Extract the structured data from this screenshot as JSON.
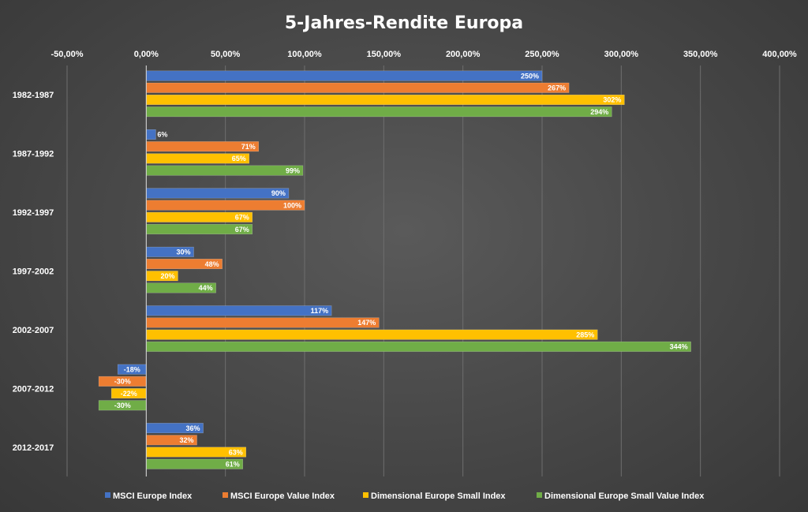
{
  "chart_data": {
    "type": "bar",
    "orientation": "horizontal",
    "title": "5-Jahres-Rendite Europa",
    "xlim": [
      -50,
      400
    ],
    "x_ticks": [
      -50,
      0,
      50,
      100,
      150,
      200,
      250,
      300,
      350,
      400
    ],
    "x_tick_labels": [
      "-50,00%",
      "0,00%",
      "50,00%",
      "100,00%",
      "150,00%",
      "200,00%",
      "250,00%",
      "300,00%",
      "350,00%",
      "400,00%"
    ],
    "categories": [
      "1982-1987",
      "1987-1992",
      "1992-1997",
      "1997-2002",
      "2002-2007",
      "2007-2012",
      "2012-2017"
    ],
    "series": [
      {
        "name": "MSCI Europe Index",
        "color": "#4472C4",
        "values": [
          250,
          6,
          90,
          30,
          117,
          -18,
          36
        ]
      },
      {
        "name": "MSCI Europe Value Index",
        "color": "#ED7D31",
        "values": [
          267,
          71,
          100,
          48,
          147,
          -30,
          32
        ]
      },
      {
        "name": "Dimensional Europe Small Index",
        "color": "#FFC000",
        "values": [
          302,
          65,
          67,
          20,
          285,
          -22,
          63
        ]
      },
      {
        "name": "Dimensional Europe Small Value Index",
        "color": "#70AD47",
        "values": [
          294,
          99,
          67,
          44,
          344,
          -30,
          61
        ]
      }
    ],
    "grid": true,
    "legend_position": "bottom"
  }
}
